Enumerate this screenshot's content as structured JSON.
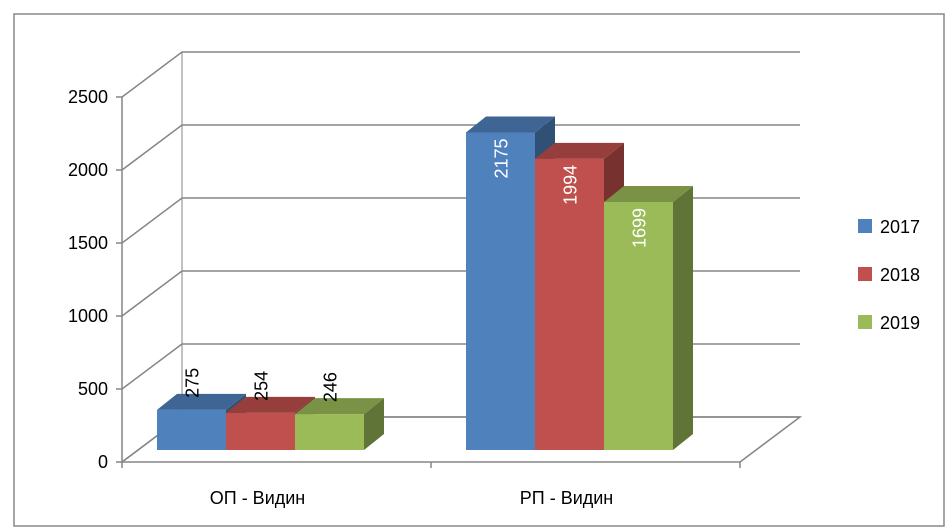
{
  "chart_data": {
    "type": "bar3d",
    "categories": [
      "ОП - Видин",
      "РП - Видин"
    ],
    "series": [
      {
        "name": "2017",
        "color": "#4f81bd",
        "values": [
          275,
          2175
        ]
      },
      {
        "name": "2018",
        "color": "#c0504d",
        "values": [
          254,
          1994
        ]
      },
      {
        "name": "2019",
        "color": "#9bbb59",
        "values": [
          246,
          1699
        ]
      }
    ],
    "ylim": [
      0,
      2500
    ],
    "yticks": [
      0,
      500,
      1000,
      1500,
      2000,
      2500
    ],
    "grid": true,
    "legend": "right"
  }
}
